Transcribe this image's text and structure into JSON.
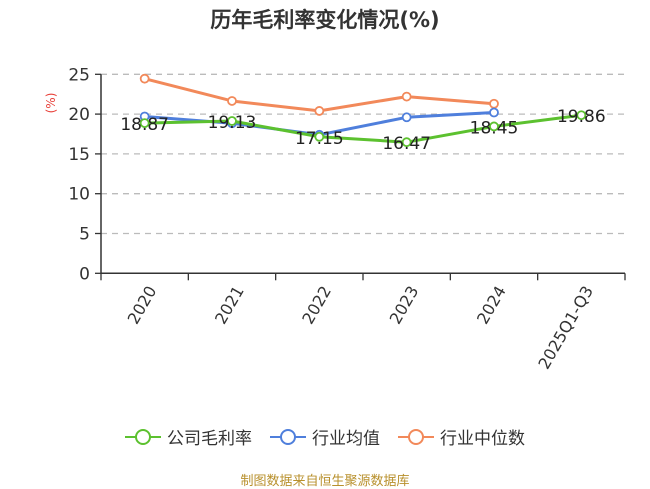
{
  "header": {
    "title": "历年毛利率变化情况(%)"
  },
  "footer": {
    "source": "制图数据来自恒生聚源数据库"
  },
  "legend": {
    "items": [
      {
        "label": "公司毛利率",
        "color": "#5cc12f"
      },
      {
        "label": "行业均值",
        "color": "#4f7fdc"
      },
      {
        "label": "行业中位数",
        "color": "#f2895a"
      }
    ]
  },
  "chart_data": {
    "type": "line",
    "title": "历年毛利率变化情况(%)",
    "xlabel": "",
    "ylabel": "(%)",
    "ylim": [
      0,
      25
    ],
    "yticks": [
      0,
      5,
      10,
      15,
      20,
      25
    ],
    "grid": true,
    "legend_position": "bottom",
    "categories": [
      "2020",
      "2021",
      "2022",
      "2023",
      "2024",
      "2025Q1-Q3"
    ],
    "series": [
      {
        "name": "公司毛利率",
        "color": "#5cc12f",
        "values": [
          18.87,
          19.13,
          17.15,
          16.47,
          18.45,
          19.86
        ],
        "labels": [
          "18.87",
          "19.13",
          "17.15",
          "16.47",
          "18.45",
          "19.86"
        ]
      },
      {
        "name": "行业均值",
        "color": "#4f7fdc",
        "values": [
          19.7,
          18.85,
          17.4,
          19.6,
          20.2,
          null
        ]
      },
      {
        "name": "行业中位数",
        "color": "#f2895a",
        "values": [
          24.45,
          21.65,
          20.4,
          22.2,
          21.3,
          null
        ]
      }
    ],
    "annotations": {
      "source": "制图数据来自恒生聚源数据库"
    }
  }
}
